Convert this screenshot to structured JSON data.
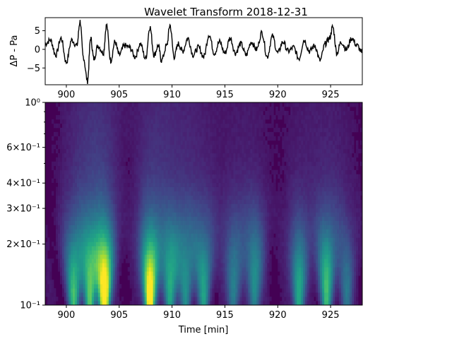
{
  "chart_data": [
    {
      "type": "line",
      "title": "Wavelet Transform 2018-12-31",
      "ylabel": "ΔP - Pa",
      "xlabel": "",
      "xlim": [
        898,
        928
      ],
      "ylim": [
        -9.5,
        8.5
      ],
      "x_ticks": [
        900,
        905,
        910,
        915,
        920,
        925
      ],
      "y_ticks": [
        -5,
        0,
        5
      ],
      "y_tick_labels": [
        "−5",
        "0",
        "5"
      ],
      "x_tick_labels": [
        "900",
        "905",
        "910",
        "915",
        "920",
        "925"
      ],
      "series": [
        {
          "color": "#000000",
          "x": [
            898.0,
            898.5,
            899.0,
            899.5,
            900.0,
            900.5,
            901.0,
            901.3,
            901.6,
            902.0,
            902.3,
            902.6,
            903.0,
            903.5,
            903.8,
            904.2,
            904.6,
            905.0,
            905.5,
            906.0,
            906.5,
            907.0,
            907.5,
            907.9,
            908.3,
            908.7,
            909.0,
            909.5,
            909.8,
            910.2,
            910.6,
            911.0,
            911.5,
            912.0,
            912.5,
            913.0,
            913.5,
            914.0,
            914.5,
            915.0,
            915.5,
            916.0,
            916.5,
            917.0,
            917.5,
            918.0,
            918.5,
            919.0,
            919.5,
            920.0,
            920.5,
            921.0,
            921.5,
            922.0,
            922.5,
            923.0,
            923.5,
            924.0,
            924.5,
            924.9,
            925.2,
            925.6,
            926.0,
            926.5,
            927.0,
            927.5,
            928.0
          ],
          "y": [
            1.5,
            2.5,
            -1.5,
            3.0,
            -3.5,
            2.5,
            1.0,
            7.5,
            -2.0,
            -8.5,
            3.0,
            -2.5,
            1.0,
            -1.0,
            6.5,
            -3.0,
            2.0,
            -1.5,
            1.0,
            0.5,
            -2.0,
            1.5,
            -2.5,
            6.0,
            -1.5,
            1.0,
            -3.0,
            1.0,
            6.5,
            -2.0,
            1.5,
            -0.5,
            3.0,
            -1.5,
            0.5,
            -2.0,
            4.0,
            -1.0,
            2.0,
            -1.0,
            3.0,
            -1.0,
            1.5,
            -1.5,
            2.0,
            0.0,
            4.5,
            -2.0,
            3.5,
            -1.0,
            2.0,
            -0.5,
            0.5,
            -2.5,
            2.5,
            -0.5,
            1.0,
            -3.0,
            1.5,
            3.0,
            6.0,
            -1.0,
            2.0,
            0.0,
            3.0,
            1.0,
            -1.0
          ]
        }
      ]
    },
    {
      "type": "heatmap",
      "title": "",
      "xlabel": "Time  [min]",
      "ylabel": "",
      "xlim": [
        898,
        928
      ],
      "ylim": [
        0.1,
        1.0
      ],
      "yscale": "log",
      "x_ticks": [
        900,
        905,
        910,
        915,
        920,
        925
      ],
      "x_tick_labels": [
        "900",
        "905",
        "910",
        "915",
        "920",
        "925"
      ],
      "y_ticks": [
        0.1,
        0.2,
        0.3,
        0.4,
        0.6,
        1.0
      ],
      "y_tick_labels": [
        "10⁻¹",
        "2×10⁻¹",
        "3×10⁻¹",
        "4×10⁻¹",
        "6×10⁻¹",
        "10⁰"
      ],
      "colormap": "viridis",
      "hotspots": [
        {
          "x": 903.6,
          "period": 0.105,
          "intensity": 1.0
        },
        {
          "x": 907.9,
          "period": 0.105,
          "intensity": 0.95
        },
        {
          "x": 902.2,
          "period": 0.11,
          "intensity": 0.6
        },
        {
          "x": 900.7,
          "period": 0.11,
          "intensity": 0.55
        },
        {
          "x": 909.8,
          "period": 0.12,
          "intensity": 0.5
        },
        {
          "x": 911.3,
          "period": 0.12,
          "intensity": 0.4
        },
        {
          "x": 913.0,
          "period": 0.12,
          "intensity": 0.45
        },
        {
          "x": 915.8,
          "period": 0.12,
          "intensity": 0.35
        },
        {
          "x": 917.8,
          "period": 0.13,
          "intensity": 0.4
        },
        {
          "x": 922.0,
          "period": 0.11,
          "intensity": 0.5
        },
        {
          "x": 924.6,
          "period": 0.12,
          "intensity": 0.55
        },
        {
          "x": 926.5,
          "period": 0.11,
          "intensity": 0.3
        }
      ]
    }
  ]
}
